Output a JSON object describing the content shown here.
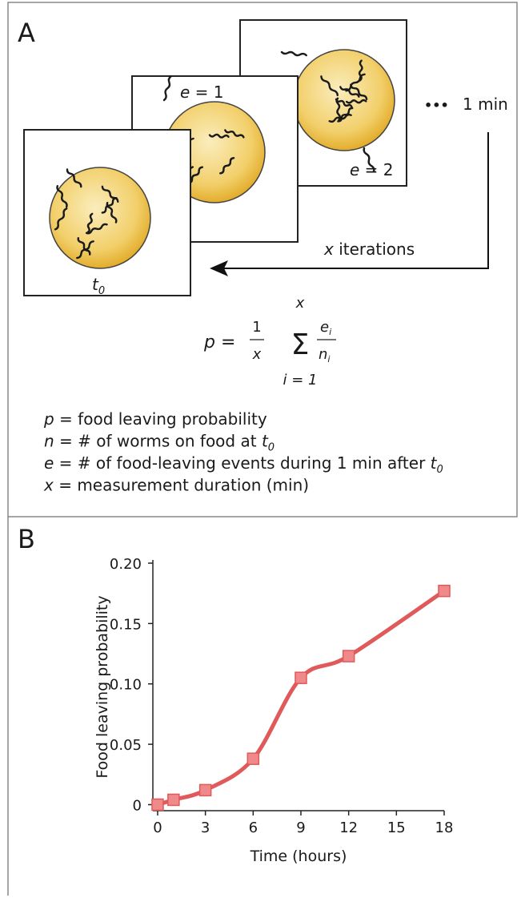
{
  "panel_a": {
    "label": "A",
    "frames": [
      {
        "time_var": "t",
        "time_sub": "0"
      },
      {
        "event_var": "e",
        "event_rest": " = 1"
      },
      {
        "event_var": "e",
        "event_rest": " = 2"
      }
    ],
    "ellipsis": "•••",
    "interval": "1 min",
    "iterations_var": "x",
    "iterations_text": " iterations",
    "formula": {
      "lhs": "p",
      "equals": "=",
      "coef_num": "1",
      "coef_den": "x",
      "sum": "Σ",
      "sum_upper": "x",
      "sum_lower": "i = 1",
      "term_num": "e",
      "term_num_sub": "i",
      "term_den": "n",
      "term_den_sub": "i"
    },
    "definitions": [
      {
        "symbol": "p",
        "text": " = food leaving probability"
      },
      {
        "symbol": "n",
        "text": " = # of worms on food at ",
        "ref_var": "t",
        "ref_sub": "0"
      },
      {
        "symbol": "e",
        "text": " = # of food-leaving events during 1 min after ",
        "ref_var": "t",
        "ref_sub": "0"
      },
      {
        "symbol": "x",
        "text": " = measurement duration (min)"
      }
    ]
  },
  "panel_b": {
    "label": "B"
  },
  "chart_data": {
    "type": "line",
    "x_label": "Time (hours)",
    "y_label": "Food leaving probability",
    "x": [
      0,
      1,
      3,
      6,
      9,
      12,
      18
    ],
    "values": [
      0,
      0.004,
      0.012,
      0.038,
      0.105,
      0.123,
      0.177
    ],
    "color": "#e05a5c",
    "marker_color": "#f08a8a",
    "xlim": [
      -0.3,
      18
    ],
    "xticks": [
      0,
      3,
      6,
      9,
      12,
      15,
      18
    ],
    "ylim": [
      -0.005,
      0.2
    ],
    "yticks": [
      0,
      0.05,
      {
        "value": 0.1,
        "label": "0.10"
      },
      0.15,
      {
        "value": 0.2,
        "label": "0.20"
      }
    ]
  }
}
